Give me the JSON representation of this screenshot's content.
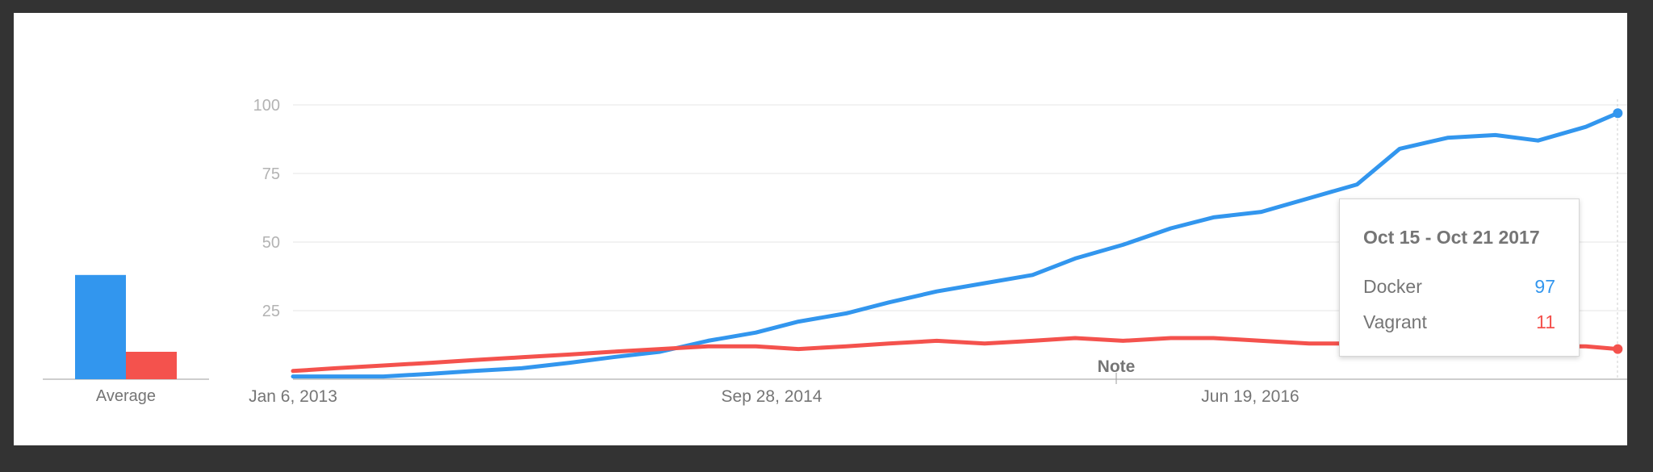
{
  "chart_data": {
    "type": "line",
    "ylim": [
      0,
      100
    ],
    "yticks": [
      25,
      50,
      75,
      100
    ],
    "grid": true,
    "x_range": [
      "2013-01-06",
      "2017-10-21"
    ],
    "xtick_labels": [
      "Jan 6, 2013",
      "Sep 28, 2014",
      "Jun 19, 2016"
    ],
    "note_label": "Note",
    "average_label": "Average",
    "series": [
      {
        "name": "Docker",
        "color": "#3296EE",
        "average": 38,
        "dates": [
          "2013-01-06",
          "2013-03-03",
          "2013-05-05",
          "2013-07-07",
          "2013-09-01",
          "2013-11-03",
          "2014-01-05",
          "2014-03-02",
          "2014-05-04",
          "2014-07-06",
          "2014-09-07",
          "2014-11-02",
          "2015-01-04",
          "2015-03-01",
          "2015-05-03",
          "2015-07-05",
          "2015-09-06",
          "2015-11-01",
          "2016-01-03",
          "2016-03-06",
          "2016-05-01",
          "2016-07-03",
          "2016-09-04",
          "2016-11-06",
          "2017-01-01",
          "2017-03-05",
          "2017-05-07",
          "2017-07-02",
          "2017-09-03",
          "2017-10-15"
        ],
        "values": [
          1,
          1,
          1,
          2,
          3,
          4,
          6,
          8,
          10,
          14,
          17,
          21,
          24,
          28,
          32,
          35,
          38,
          44,
          49,
          55,
          59,
          61,
          66,
          71,
          84,
          88,
          89,
          87,
          92,
          97
        ]
      },
      {
        "name": "Vagrant",
        "color": "#F4524D",
        "average": 10,
        "dates": [
          "2013-01-06",
          "2013-03-03",
          "2013-05-05",
          "2013-07-07",
          "2013-09-01",
          "2013-11-03",
          "2014-01-05",
          "2014-03-02",
          "2014-05-04",
          "2014-07-06",
          "2014-09-07",
          "2014-11-02",
          "2015-01-04",
          "2015-03-01",
          "2015-05-03",
          "2015-07-05",
          "2015-09-06",
          "2015-11-01",
          "2016-01-03",
          "2016-03-06",
          "2016-05-01",
          "2016-07-03",
          "2016-09-04",
          "2016-11-06",
          "2017-01-01",
          "2017-03-05",
          "2017-05-07",
          "2017-07-02",
          "2017-09-03",
          "2017-10-15"
        ],
        "values": [
          3,
          4,
          5,
          6,
          7,
          8,
          9,
          10,
          11,
          12,
          12,
          11,
          12,
          13,
          14,
          13,
          14,
          15,
          14,
          15,
          15,
          14,
          13,
          13,
          12,
          12,
          12,
          12,
          12,
          11
        ]
      }
    ],
    "tooltip": {
      "date_range": "Oct 15 - Oct 21 2017",
      "rows": [
        {
          "name": "Docker",
          "value": "97",
          "color": "#3296EE"
        },
        {
          "name": "Vagrant",
          "value": "11",
          "color": "#F4524D"
        }
      ]
    }
  }
}
